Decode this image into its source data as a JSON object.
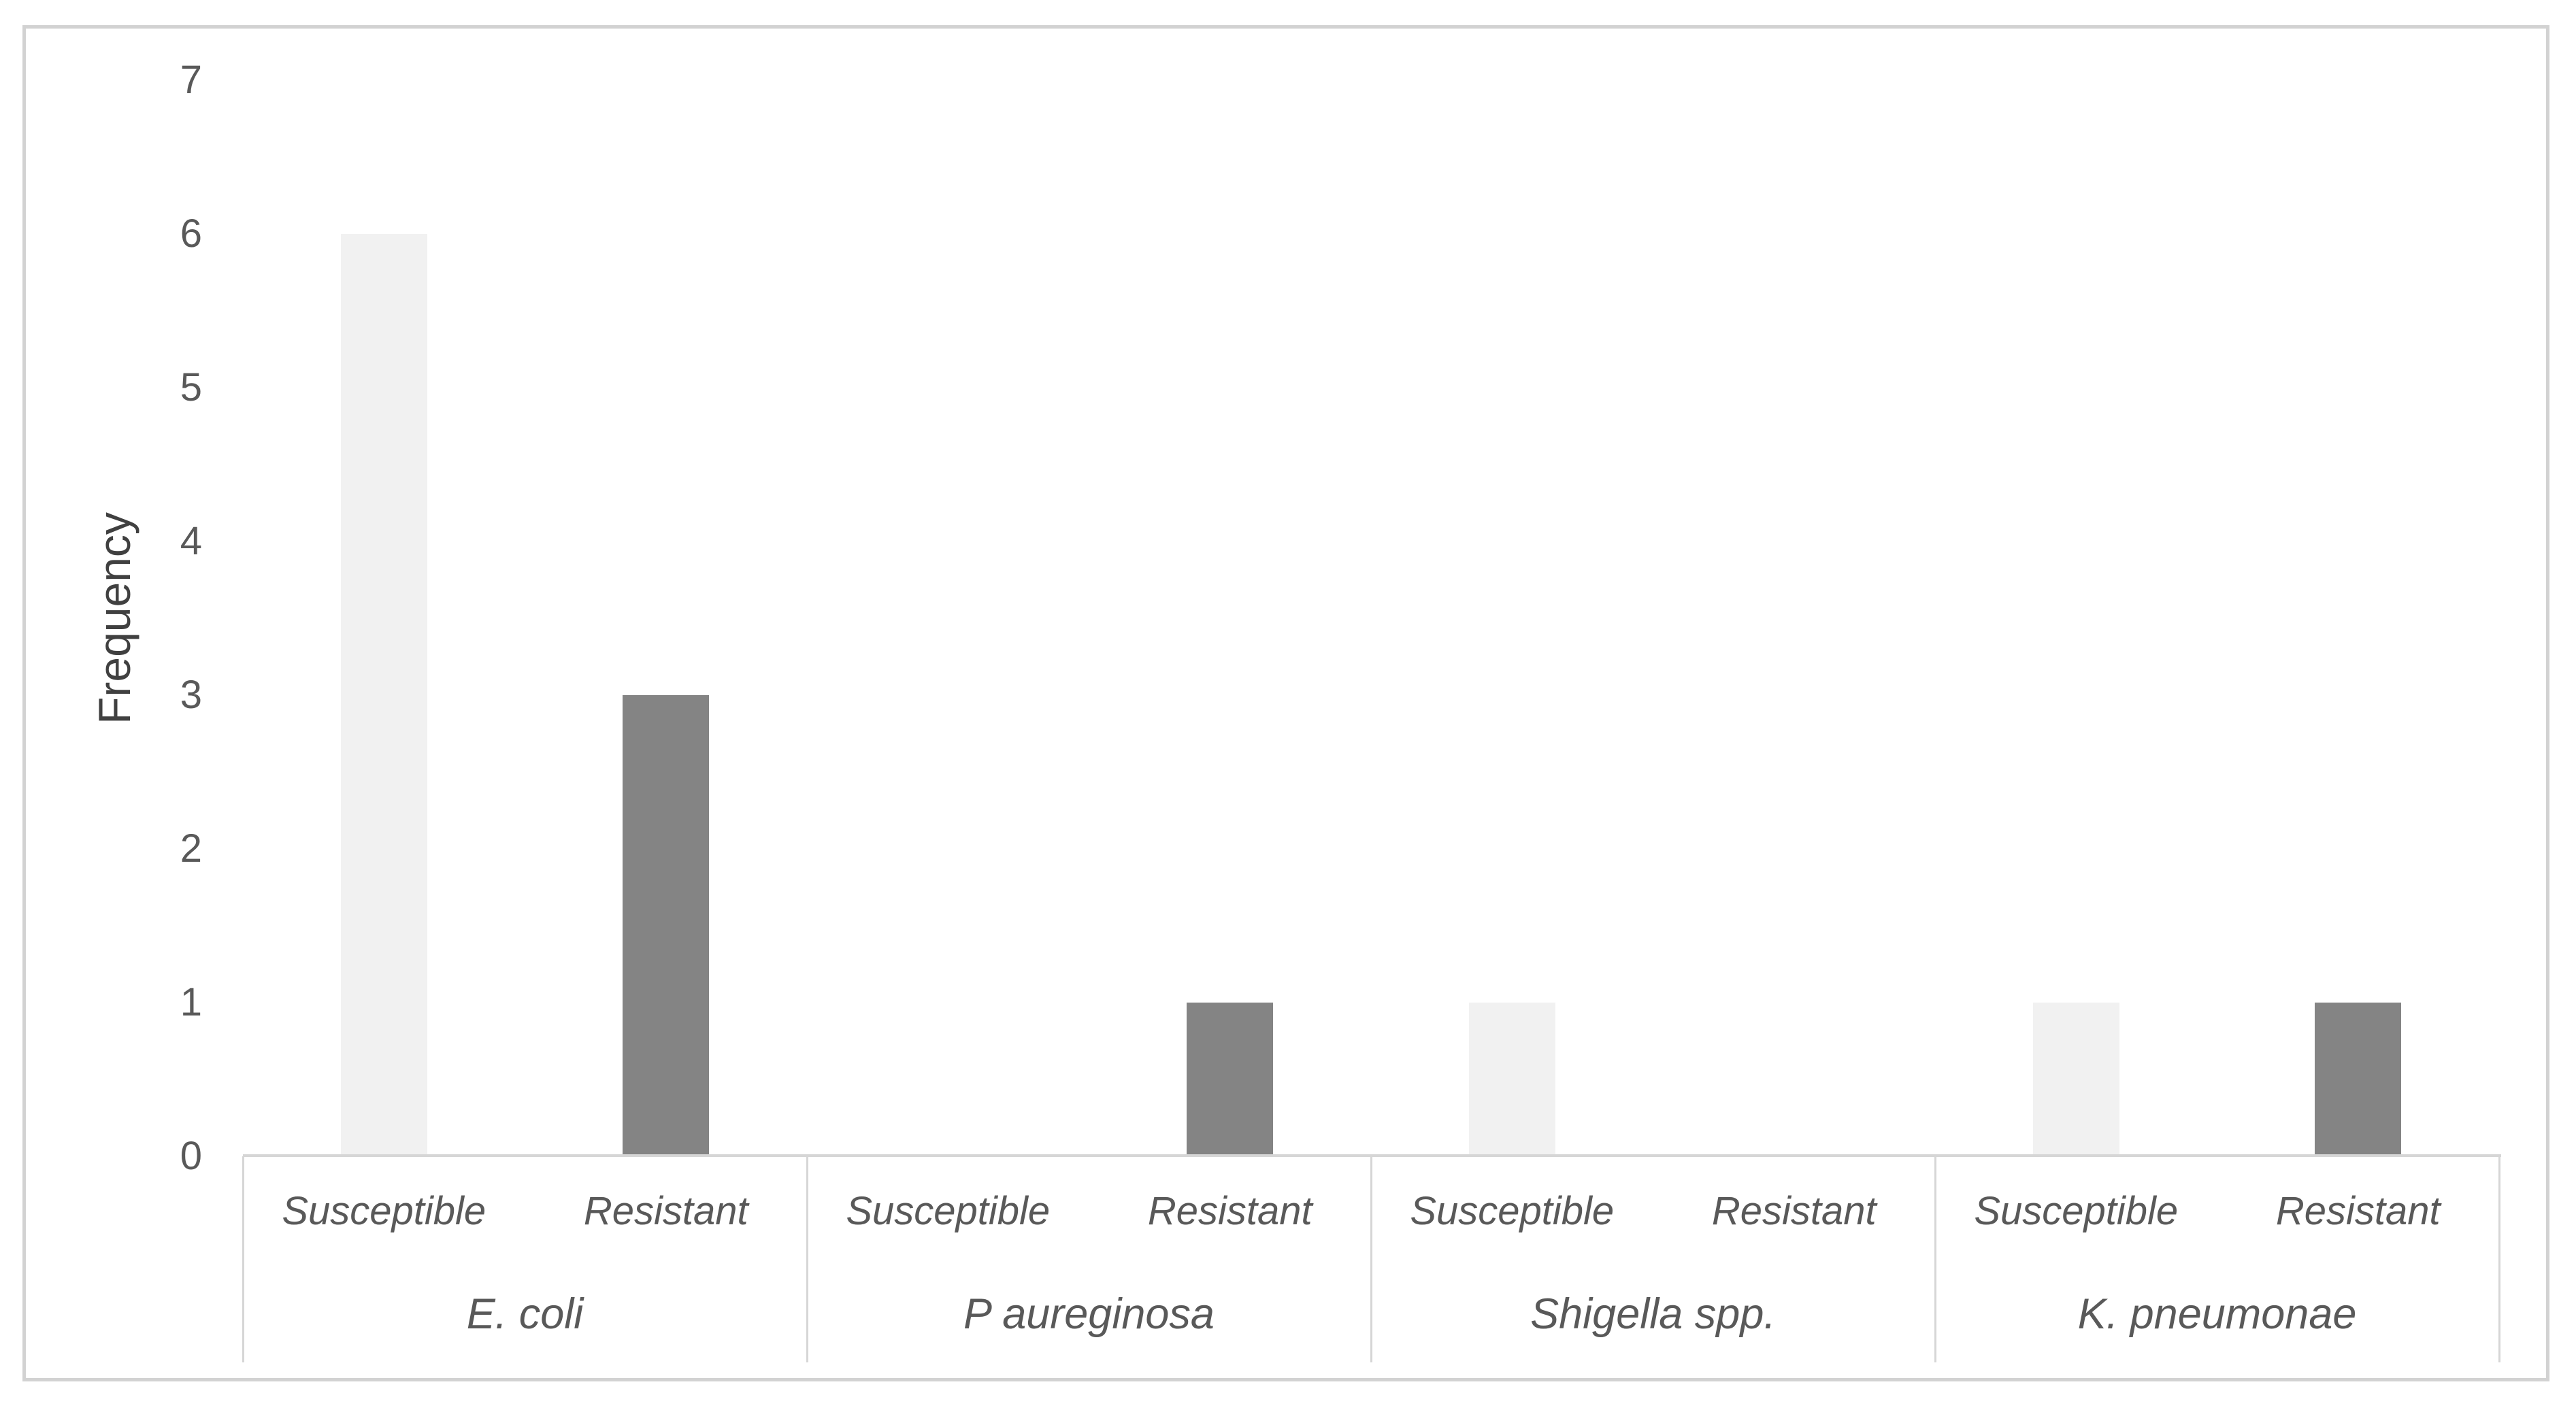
{
  "chart_data": {
    "type": "bar",
    "title": "",
    "xlabel": "",
    "ylabel": "Frequency",
    "ylim": [
      0,
      7
    ],
    "yticks": [
      0,
      1,
      2,
      3,
      4,
      5,
      6,
      7
    ],
    "grid": false,
    "legend": "none",
    "categories": [
      "E. coli",
      "P aureginosa",
      "Shigella spp.",
      "K. pneumonae"
    ],
    "series": [
      {
        "name": "Susceptible",
        "values": [
          6,
          0,
          1,
          1
        ],
        "color": "#f1f1f1"
      },
      {
        "name": "Resistant",
        "values": [
          3,
          1,
          0,
          1
        ],
        "color": "#848484"
      }
    ],
    "colors": {
      "axis_line": "#d6d6d6",
      "axis_text": "#595959",
      "y_title_text": "#404040",
      "figure_border": "#d2d2d2",
      "plot_background": "#ffffff"
    }
  }
}
